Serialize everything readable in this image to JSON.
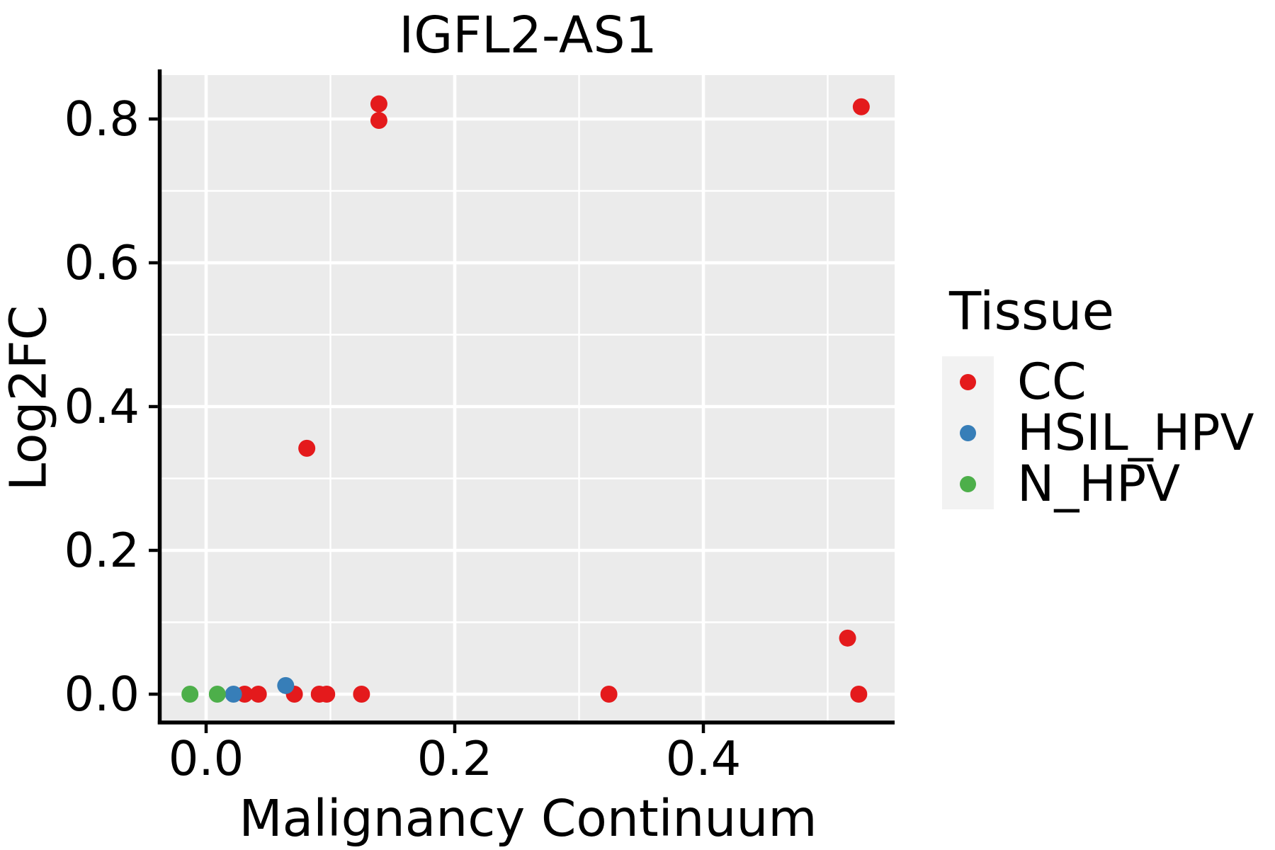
{
  "chart_data": {
    "type": "scatter",
    "title": "IGFL2-AS1",
    "xlabel": "Malignancy Continuum",
    "ylabel": "Log2FC",
    "xlim": [
      -0.036,
      0.554
    ],
    "ylim": [
      -0.037,
      0.861
    ],
    "x_ticks": [
      0.0,
      0.2,
      0.4
    ],
    "x_tick_labels": [
      "0.0",
      "0.2",
      "0.4"
    ],
    "x_minor_gridlines": [
      0.1,
      0.3,
      0.5
    ],
    "y_ticks": [
      0.0,
      0.2,
      0.4,
      0.6,
      0.8
    ],
    "y_tick_labels": [
      "0.0",
      "0.2",
      "0.4",
      "0.6",
      "0.8"
    ],
    "y_minor_gridlines": [
      0.1,
      0.3,
      0.5,
      0.7
    ],
    "grid": "major and minor white gridlines on grey panel",
    "panel_background": "#EBEBEB",
    "gridline_color": "#FFFFFF",
    "axis_line_color": "#000000",
    "text_color": "#000000",
    "legend": {
      "title": "Tissue",
      "position": "right",
      "key_background": "#F2F2F2"
    },
    "series": [
      {
        "name": "CC",
        "color": "#E41A1C",
        "points": [
          [
            0.031,
            0.0
          ],
          [
            0.042,
            0.0
          ],
          [
            0.071,
            0.0
          ],
          [
            0.081,
            0.342
          ],
          [
            0.091,
            0.0
          ],
          [
            0.097,
            0.0
          ],
          [
            0.125,
            0.0
          ],
          [
            0.139,
            0.798
          ],
          [
            0.139,
            0.821
          ],
          [
            0.324,
            0.0
          ],
          [
            0.516,
            0.078
          ],
          [
            0.525,
            0.0
          ],
          [
            0.527,
            0.817
          ]
        ]
      },
      {
        "name": "HSIL_HPV",
        "color": "#377EB8",
        "points": [
          [
            0.022,
            0.0
          ],
          [
            0.064,
            0.012
          ]
        ]
      },
      {
        "name": "N_HPV",
        "color": "#4DAF4A",
        "points": [
          [
            -0.013,
            0.0
          ],
          [
            0.009,
            0.0
          ]
        ]
      }
    ]
  }
}
